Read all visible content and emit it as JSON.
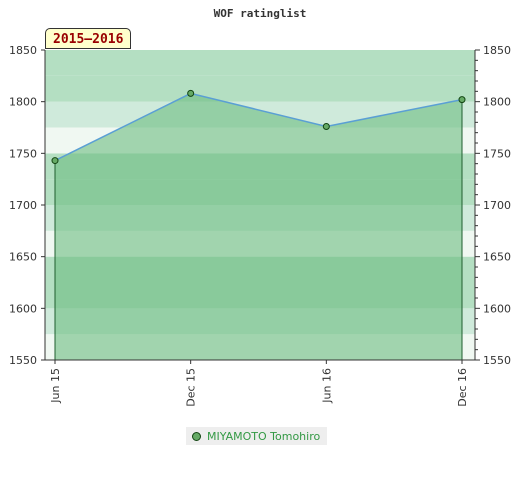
{
  "chart_data": {
    "type": "area",
    "title": "WOF ratinglist",
    "season_label": "2015–2016",
    "categories": [
      "Jun 15",
      "Dec 15",
      "Jun 16",
      "Dec 16"
    ],
    "series": [
      {
        "name": "MIYAMOTO Tomohiro",
        "values": [
          1743,
          1808,
          1776,
          1802
        ]
      }
    ],
    "ylim": [
      1550,
      1850
    ],
    "yticks": [
      1550,
      1600,
      1650,
      1700,
      1750,
      1800,
      1850
    ],
    "y_axis_sides": "both",
    "legend_position": "bottom-center",
    "colors": {
      "area_fill": "#6dbd80",
      "line": "#5a9fd4",
      "marker_fill": "#66aa66",
      "marker_stroke": "#114411",
      "band_dark": "#b4dfc2",
      "band_light": "#cfeadb",
      "band_lightest": "#f0f8f2"
    }
  }
}
